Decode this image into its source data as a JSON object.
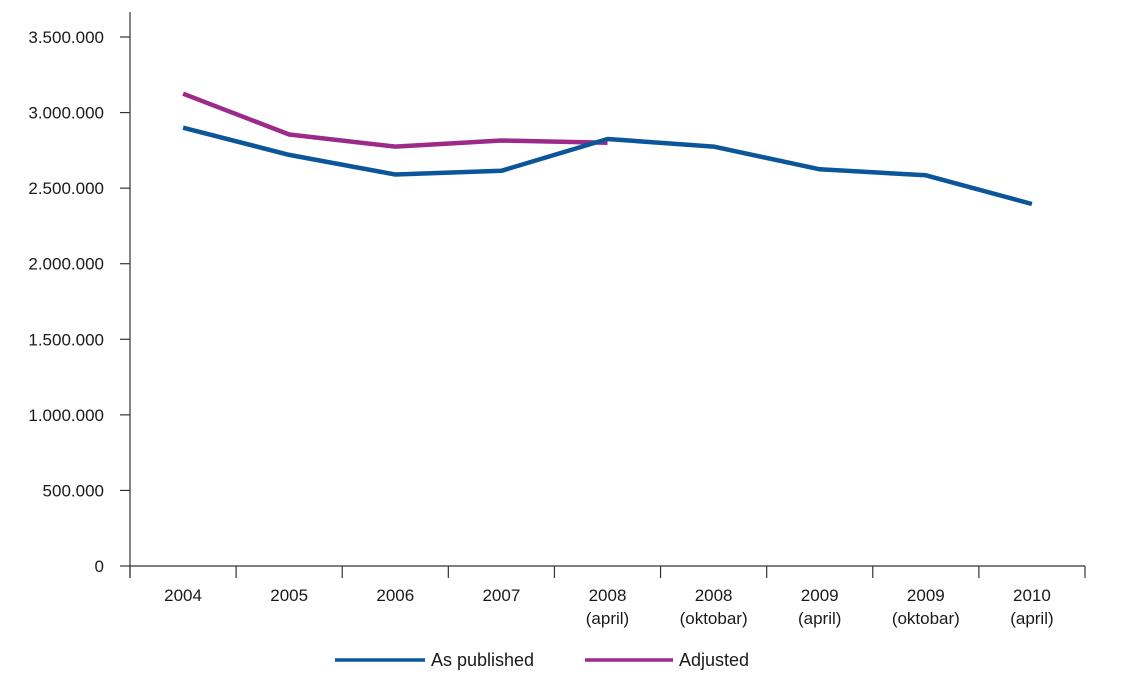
{
  "chart_data": {
    "type": "line",
    "title": "",
    "xlabel": "",
    "ylabel": "",
    "categories": [
      [
        "2004"
      ],
      [
        "2005"
      ],
      [
        "2006"
      ],
      [
        "2007"
      ],
      [
        "2008",
        "(april)"
      ],
      [
        "2008",
        "(oktobar)"
      ],
      [
        "2009",
        "(april)"
      ],
      [
        "2009",
        "(oktobar)"
      ],
      [
        "2010",
        "(april)"
      ]
    ],
    "ylim": [
      0,
      3500000
    ],
    "yticks": [
      0,
      500000,
      1000000,
      1500000,
      2000000,
      2500000,
      3000000,
      3500000
    ],
    "ytick_labels": [
      "0",
      "500.000",
      "1.000.000",
      "1.500.000",
      "2.000.000",
      "2.500.000",
      "3.000.000",
      "3.500.000"
    ],
    "grid": false,
    "legend_position": "bottom",
    "series": [
      {
        "name": "As published",
        "color": "#0a5699",
        "values": [
          2900000,
          2720000,
          2590000,
          2615000,
          2825000,
          2775000,
          2625000,
          2585000,
          2395000
        ]
      },
      {
        "name": "Adjusted",
        "color": "#9c2a8a",
        "values": [
          3125000,
          2855000,
          2775000,
          2815000,
          2800000,
          null,
          null,
          null,
          null
        ]
      }
    ]
  }
}
